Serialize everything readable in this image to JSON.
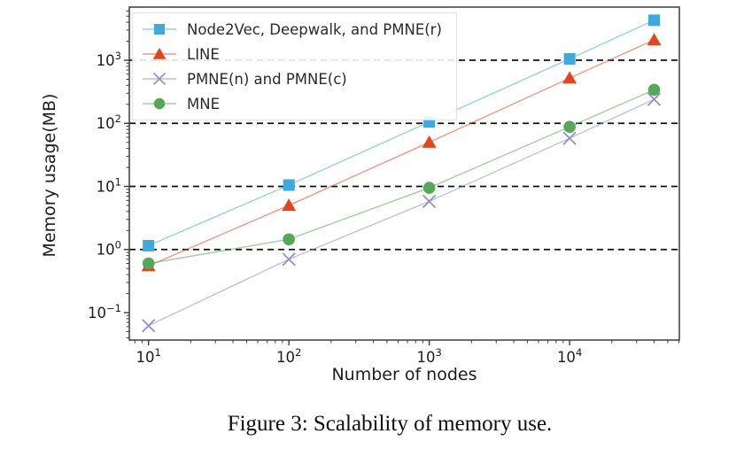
{
  "figure": {
    "caption": "Figure 3: Scalability of memory use."
  },
  "chart_data": {
    "type": "line",
    "title": "",
    "xlabel": "Number of nodes",
    "ylabel": "Memory usage(MB)",
    "x_scale": "log",
    "y_scale": "log",
    "xlim": [
      7.3,
      60500
    ],
    "ylim": [
      0.0367,
      6950
    ],
    "grid": "horizontal black dashed lines at y = 1, 10, 100, 1000",
    "legend_position": "upper left",
    "x": [
      10,
      100,
      1000,
      10000,
      40000
    ],
    "x_ticks": [
      {
        "value": 10,
        "base": "10",
        "exp": "1"
      },
      {
        "value": 100,
        "base": "10",
        "exp": "2"
      },
      {
        "value": 1000,
        "base": "10",
        "exp": "3"
      },
      {
        "value": 10000,
        "base": "10",
        "exp": "4"
      }
    ],
    "y_ticks": [
      {
        "value": 0.1,
        "base": "10",
        "exp": "−1",
        "grid": false
      },
      {
        "value": 1,
        "base": "10",
        "exp": "0",
        "grid": true
      },
      {
        "value": 10,
        "base": "10",
        "exp": "1",
        "grid": true
      },
      {
        "value": 100,
        "base": "10",
        "exp": "2",
        "grid": true
      },
      {
        "value": 1000,
        "base": "10",
        "exp": "3",
        "grid": true
      }
    ],
    "series": [
      {
        "name": "Node2Vec, Deepwalk, and PMNE(r)",
        "marker": "square",
        "color": "#3fa9dc",
        "values": [
          1.15,
          10.5,
          105,
          1050,
          4300
        ]
      },
      {
        "name": "LINE",
        "marker": "triangle",
        "color": "#e0471f",
        "values": [
          0.55,
          5.0,
          50,
          520,
          2100
        ]
      },
      {
        "name": "PMNE(n) and PMNE(c)",
        "marker": "x",
        "color": "#8b8fc7",
        "values": [
          0.062,
          0.7,
          5.8,
          58,
          240
        ]
      },
      {
        "name": "MNE",
        "marker": "circle",
        "color": "#55a855",
        "values": [
          0.6,
          1.45,
          9.5,
          88,
          340
        ]
      }
    ],
    "axis_color": "#3a3a3a",
    "grid_color": "#111111",
    "tick_label_color": "#1c1c1c"
  }
}
